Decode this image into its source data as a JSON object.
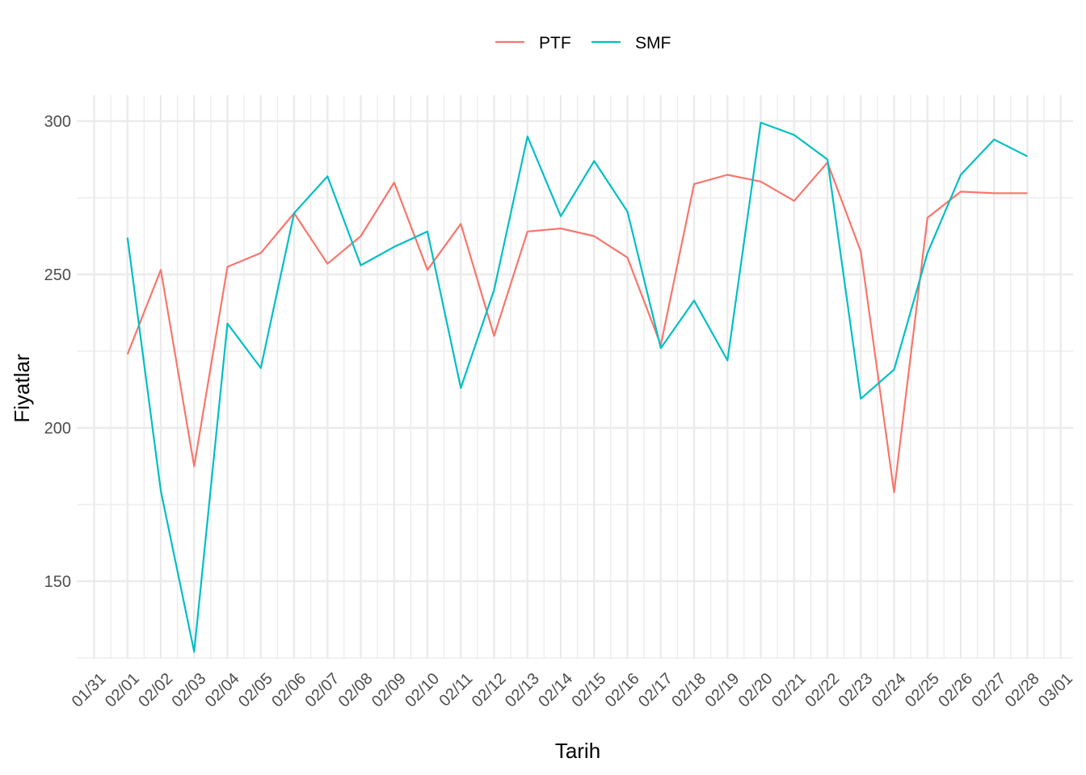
{
  "chart_data": {
    "type": "line",
    "xlabel": "Tarih",
    "ylabel": "Fiyatlar",
    "x_ticks": [
      "01/31",
      "02/01",
      "02/02",
      "02/03",
      "02/04",
      "02/05",
      "02/06",
      "02/07",
      "02/08",
      "02/09",
      "02/10",
      "02/11",
      "02/12",
      "02/13",
      "02/14",
      "02/15",
      "02/16",
      "02/17",
      "02/18",
      "02/19",
      "02/20",
      "02/21",
      "02/22",
      "02/23",
      "02/24",
      "02/25",
      "02/26",
      "02/27",
      "02/28",
      "03/01"
    ],
    "y_ticks": [
      150,
      200,
      250,
      300
    ],
    "ylim": [
      122,
      308
    ],
    "x_range": [
      0,
      29
    ],
    "grid": true,
    "legend_position": "top",
    "series": [
      {
        "name": "PTF",
        "color": "#F8766D",
        "x": [
          1,
          2,
          3,
          4,
          5,
          6,
          7,
          8,
          9,
          10,
          11,
          12,
          13,
          14,
          15,
          16,
          17,
          18,
          19,
          20,
          21,
          22,
          23,
          24,
          25,
          26,
          27,
          28
        ],
        "values": [
          224,
          251.5,
          187.5,
          252.5,
          257,
          270,
          253.5,
          262.5,
          280,
          251.5,
          266.5,
          230,
          264,
          265,
          262.5,
          255.5,
          227,
          279.5,
          282.5,
          280.3,
          274,
          286.5,
          257.5,
          179,
          268.5,
          277,
          276.5,
          276.5
        ]
      },
      {
        "name": "SMF",
        "color": "#00BFC4",
        "x": [
          1,
          2,
          3,
          4,
          5,
          6,
          7,
          8,
          9,
          10,
          11,
          12,
          13,
          14,
          15,
          16,
          17,
          18,
          19,
          20,
          21,
          22,
          23,
          24,
          25,
          26,
          27,
          28
        ],
        "values": [
          262,
          179.5,
          127,
          234,
          219.5,
          270,
          282,
          253,
          259,
          264,
          213,
          245,
          295,
          269,
          287,
          270.5,
          226,
          241.5,
          222,
          299.5,
          295.5,
          287.5,
          209.5,
          219,
          257,
          282.5,
          294,
          288.5
        ]
      }
    ]
  }
}
